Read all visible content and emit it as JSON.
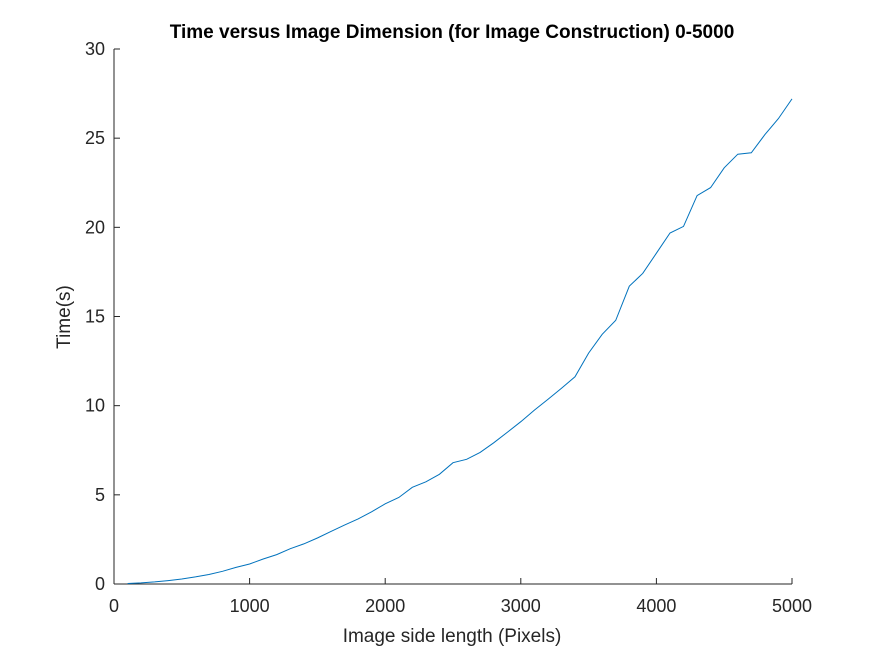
{
  "chart_data": {
    "type": "line",
    "title": "Time versus Image Dimension (for Image Construction) 0-5000",
    "xlabel": "Image side length (Pixels)",
    "ylabel": "Time(s)",
    "xlim": [
      0,
      5000
    ],
    "ylim": [
      0,
      30
    ],
    "xticks": [
      0,
      1000,
      2000,
      3000,
      4000,
      5000
    ],
    "yticks": [
      0,
      5,
      10,
      15,
      20,
      25,
      30
    ],
    "grid": false,
    "line_color": "#0072bd",
    "series": [
      {
        "x": [
          100,
          200,
          300,
          400,
          500,
          600,
          700,
          800,
          900,
          1000,
          1100,
          1200,
          1300,
          1400,
          1500,
          1600,
          1700,
          1800,
          1900,
          2000,
          2100,
          2200,
          2300,
          2400,
          2500,
          2600,
          2700,
          2800,
          2900,
          3000,
          3100,
          3200,
          3300,
          3400,
          3500,
          3600,
          3700,
          3800,
          3900,
          4000,
          4100,
          4200,
          4300,
          4400,
          4500,
          4600,
          4700,
          4800,
          4900,
          5000
        ],
        "values": [
          0.03,
          0.06,
          0.12,
          0.19,
          0.28,
          0.4,
          0.53,
          0.71,
          0.93,
          1.12,
          1.4,
          1.65,
          1.98,
          2.25,
          2.58,
          2.95,
          3.3,
          3.65,
          4.05,
          4.5,
          4.85,
          5.42,
          5.73,
          6.15,
          6.8,
          6.99,
          7.38,
          7.92,
          8.5,
          9.1,
          9.75,
          10.35,
          10.98,
          11.62,
          12.95,
          14.0,
          14.78,
          16.7,
          17.42,
          18.55,
          19.68,
          20.05,
          21.78,
          22.23,
          23.34,
          24.1,
          24.18,
          25.2,
          26.1,
          27.2
        ]
      }
    ]
  }
}
